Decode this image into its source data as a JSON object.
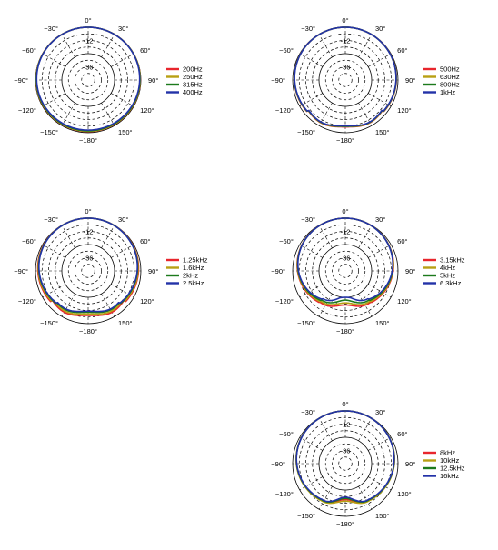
{
  "chart_data": [
    {
      "type": "polar",
      "angle_labels": [
        "0°",
        "30°",
        "60°",
        "90°",
        "120°",
        "150°",
        "−180°",
        "−150°",
        "−120°",
        "−90°",
        "−60°",
        "−30°"
      ],
      "r_labels": [
        "-12",
        "-36"
      ],
      "rlim": [
        -48,
        0
      ],
      "legend_position": "right",
      "series": [
        {
          "name": "200Hz",
          "color": "#e8262d",
          "shape": {
            "f": 0.06,
            "b": 1.5,
            "wb": 60,
            "dip": 0
          }
        },
        {
          "name": "250Hz",
          "color": "#b8a013",
          "shape": {
            "f": 0.07,
            "b": 1.7,
            "wb": 60,
            "dip": 0
          }
        },
        {
          "name": "315Hz",
          "color": "#1c7a1c",
          "shape": {
            "f": 0.09,
            "b": 2.4,
            "wb": 60,
            "dip": 0
          }
        },
        {
          "name": "400Hz",
          "color": "#2332a8",
          "shape": {
            "f": 0.12,
            "b": 3.4,
            "wb": 60,
            "dip": 0
          }
        }
      ]
    },
    {
      "type": "polar",
      "angle_labels": [
        "0°",
        "30°",
        "60°",
        "90°",
        "120°",
        "150°",
        "−180°",
        "−150°",
        "−120°",
        "−90°",
        "−60°",
        "−30°"
      ],
      "r_labels": [
        "-12",
        "-36"
      ],
      "rlim": [
        -48,
        0
      ],
      "legend_position": "right",
      "series": [
        {
          "name": "500Hz",
          "color": "#e8262d",
          "shape": {
            "f": 0.16,
            "b": 6.0,
            "wb": 50,
            "dip": 2.0
          }
        },
        {
          "name": "630Hz",
          "color": "#b8a013",
          "shape": {
            "f": 0.17,
            "b": 6.5,
            "wb": 50,
            "dip": 2.0
          }
        },
        {
          "name": "800Hz",
          "color": "#1c7a1c",
          "shape": {
            "f": 0.18,
            "b": 7.0,
            "wb": 50,
            "dip": 2.0
          }
        },
        {
          "name": "1kHz",
          "color": "#2332a8",
          "shape": {
            "f": 0.19,
            "b": 7.6,
            "wb": 50,
            "dip": 2.0
          }
        }
      ]
    },
    {
      "type": "polar",
      "angle_labels": [
        "0°",
        "30°",
        "60°",
        "90°",
        "120°",
        "150°",
        "−180°",
        "−150°",
        "−120°",
        "−90°",
        "−60°",
        "−30°"
      ],
      "r_labels": [
        "-12",
        "-36"
      ],
      "rlim": [
        -48,
        0
      ],
      "legend_position": "right",
      "series": [
        {
          "name": "1.25kHz",
          "color": "#e8262d",
          "shape": {
            "f": 0.22,
            "b": 7.0,
            "wb": 50,
            "dip": 2.5
          }
        },
        {
          "name": "1.6kHz",
          "color": "#b8a013",
          "shape": {
            "f": 0.26,
            "b": 8.0,
            "wb": 50,
            "dip": 2.5
          }
        },
        {
          "name": "2kHz",
          "color": "#1c7a1c",
          "shape": {
            "f": 0.3,
            "b": 10.0,
            "wb": 45,
            "dip": 2.5
          }
        },
        {
          "name": "2.5kHz",
          "color": "#2332a8",
          "shape": {
            "f": 0.32,
            "b": 11.0,
            "wb": 45,
            "dip": 2.5
          }
        }
      ]
    },
    {
      "type": "polar",
      "angle_labels": [
        "0°",
        "30°",
        "60°",
        "90°",
        "120°",
        "150°",
        "−180°",
        "−150°",
        "−120°",
        "−90°",
        "−60°",
        "−30°"
      ],
      "r_labels": [
        "-12",
        "-36"
      ],
      "rlim": [
        -48,
        0
      ],
      "legend_position": "right",
      "series": [
        {
          "name": "3.15kHz",
          "color": "#e8262d",
          "shape": {
            "f": 0.4,
            "b": 12.0,
            "wb": 40,
            "dip": 3.0
          }
        },
        {
          "name": "4kHz",
          "color": "#b8a013",
          "shape": {
            "f": 0.42,
            "b": 13.0,
            "wb": 40,
            "dip": 3.0
          }
        },
        {
          "name": "5kHz",
          "color": "#1c7a1c",
          "shape": {
            "f": 0.44,
            "b": 14.0,
            "wb": 40,
            "dip": 3.0
          }
        },
        {
          "name": "6.3kHz",
          "color": "#2332a8",
          "shape": {
            "f": 0.46,
            "b": 15.0,
            "wb": 40,
            "dip": 3.0
          }
        }
      ]
    },
    {
      "type": "polar",
      "angle_labels": [
        "0°",
        "30°",
        "60°",
        "90°",
        "120°",
        "150°",
        "−180°",
        "−150°",
        "−120°",
        "−90°",
        "−60°",
        "−30°"
      ],
      "r_labels": [
        "-12",
        "-36"
      ],
      "rlim": [
        -48,
        0
      ],
      "legend_position": "right",
      "series": [
        {
          "name": "8kHz",
          "color": "#e8262d",
          "shape": {
            "f": 0.33,
            "b": 12.0,
            "wb": 35,
            "dip": 6.0
          }
        },
        {
          "name": "10kHz",
          "color": "#b8a013",
          "shape": {
            "f": 0.32,
            "b": 11.0,
            "wb": 35,
            "dip": 5.0
          }
        },
        {
          "name": "12.5kHz",
          "color": "#1c7a1c",
          "shape": {
            "f": 0.34,
            "b": 12.5,
            "wb": 35,
            "dip": 6.5
          }
        },
        {
          "name": "16kHz",
          "color": "#2332a8",
          "shape": {
            "f": 0.35,
            "b": 13.0,
            "wb": 35,
            "dip": 7.0
          }
        }
      ]
    }
  ]
}
